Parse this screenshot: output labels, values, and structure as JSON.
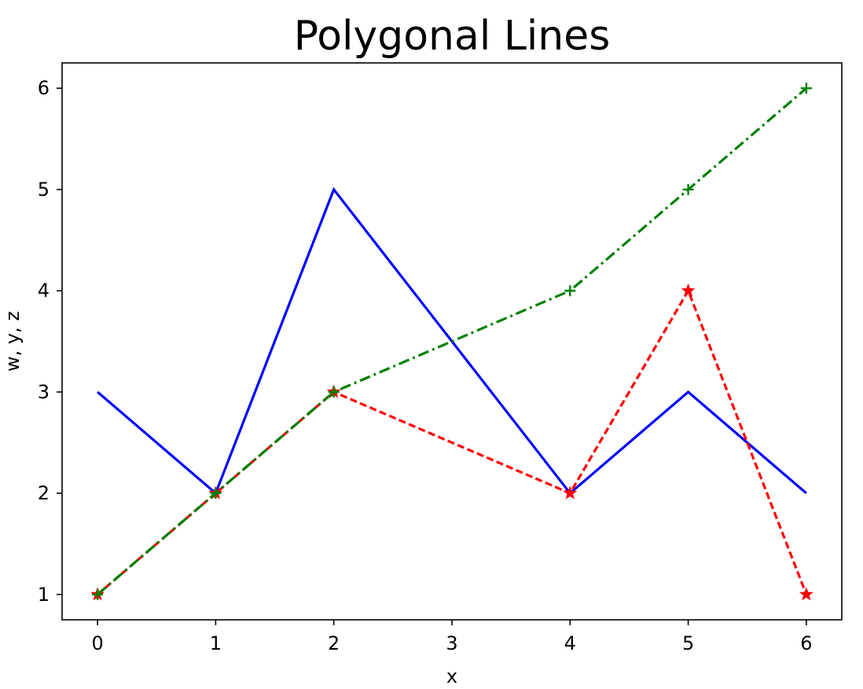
{
  "chart_data": {
    "type": "line",
    "title": "Polygonal Lines",
    "xlabel": "x",
    "ylabel": "w, y, z",
    "x": [
      0,
      1,
      2,
      4,
      5,
      6
    ],
    "xticks": [
      0,
      1,
      2,
      3,
      4,
      5,
      6
    ],
    "yticks": [
      1,
      2,
      3,
      4,
      5,
      6
    ],
    "xlim": [
      -0.3,
      6.3
    ],
    "ylim": [
      0.75,
      6.25
    ],
    "grid": false,
    "series": [
      {
        "values": [
          3,
          2,
          5,
          2,
          3,
          2
        ],
        "color": "#0000ff",
        "linestyle": "solid",
        "marker": "none"
      },
      {
        "values": [
          1,
          2,
          3,
          2,
          4,
          1
        ],
        "color": "#ff0000",
        "linestyle": "dashed",
        "marker": "star"
      },
      {
        "values": [
          1,
          2,
          3,
          4,
          5,
          6
        ],
        "color": "#008000",
        "linestyle": "dashdot",
        "marker": "plus"
      }
    ]
  }
}
